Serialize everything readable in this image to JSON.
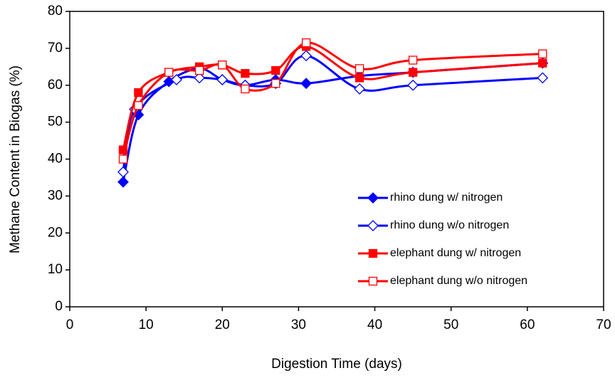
{
  "chart_data": {
    "type": "line",
    "x_label": "Digestion Time (days)",
    "y_label": "Methane Content in Biogas (%)",
    "xlim": [
      0,
      70
    ],
    "xticks": [
      0,
      10,
      20,
      30,
      40,
      50,
      60,
      70
    ],
    "ylim": [
      0,
      80
    ],
    "yticks": [
      0,
      10,
      20,
      30,
      40,
      50,
      60,
      70,
      80
    ],
    "smooth": true,
    "legend": "lower right",
    "series": [
      {
        "name": "rhino dung w/ nitrogen",
        "color": "#0000ff",
        "marker": "diamond",
        "filled": true,
        "x": [
          7,
          9,
          13,
          17,
          20,
          23,
          27,
          31,
          38,
          45,
          62
        ],
        "values": [
          33.8,
          52,
          61,
          64.5,
          61.5,
          60,
          61.5,
          60.5,
          62.5,
          63.5,
          66
        ]
      },
      {
        "name": "rhino dung w/o nitrogen",
        "color": "#0000ff",
        "marker": "diamond",
        "filled": false,
        "x": [
          7,
          8.5,
          14,
          17,
          20,
          23,
          27,
          31,
          38,
          45,
          62
        ],
        "values": [
          36.5,
          53.5,
          61.5,
          62,
          61.5,
          60,
          60.5,
          68,
          59,
          60,
          62
        ]
      },
      {
        "name": "elephant dung w/ nitrogen",
        "color": "#ff0000",
        "marker": "square",
        "filled": true,
        "x": [
          7,
          9,
          13,
          17,
          20,
          23,
          27,
          31,
          38,
          45,
          62
        ],
        "values": [
          42.5,
          58,
          63.5,
          65,
          65.5,
          63.2,
          64,
          70.5,
          62,
          63.5,
          66
        ]
      },
      {
        "name": "elephant dung w/o nitrogen",
        "color": "#ff0000",
        "marker": "square",
        "filled": false,
        "x": [
          7,
          9,
          13,
          17,
          20,
          23,
          27,
          31,
          38,
          45,
          62
        ],
        "values": [
          40,
          54.5,
          63.5,
          64,
          65.5,
          59,
          60.5,
          71.5,
          64.5,
          66.8,
          68.5
        ]
      }
    ]
  }
}
